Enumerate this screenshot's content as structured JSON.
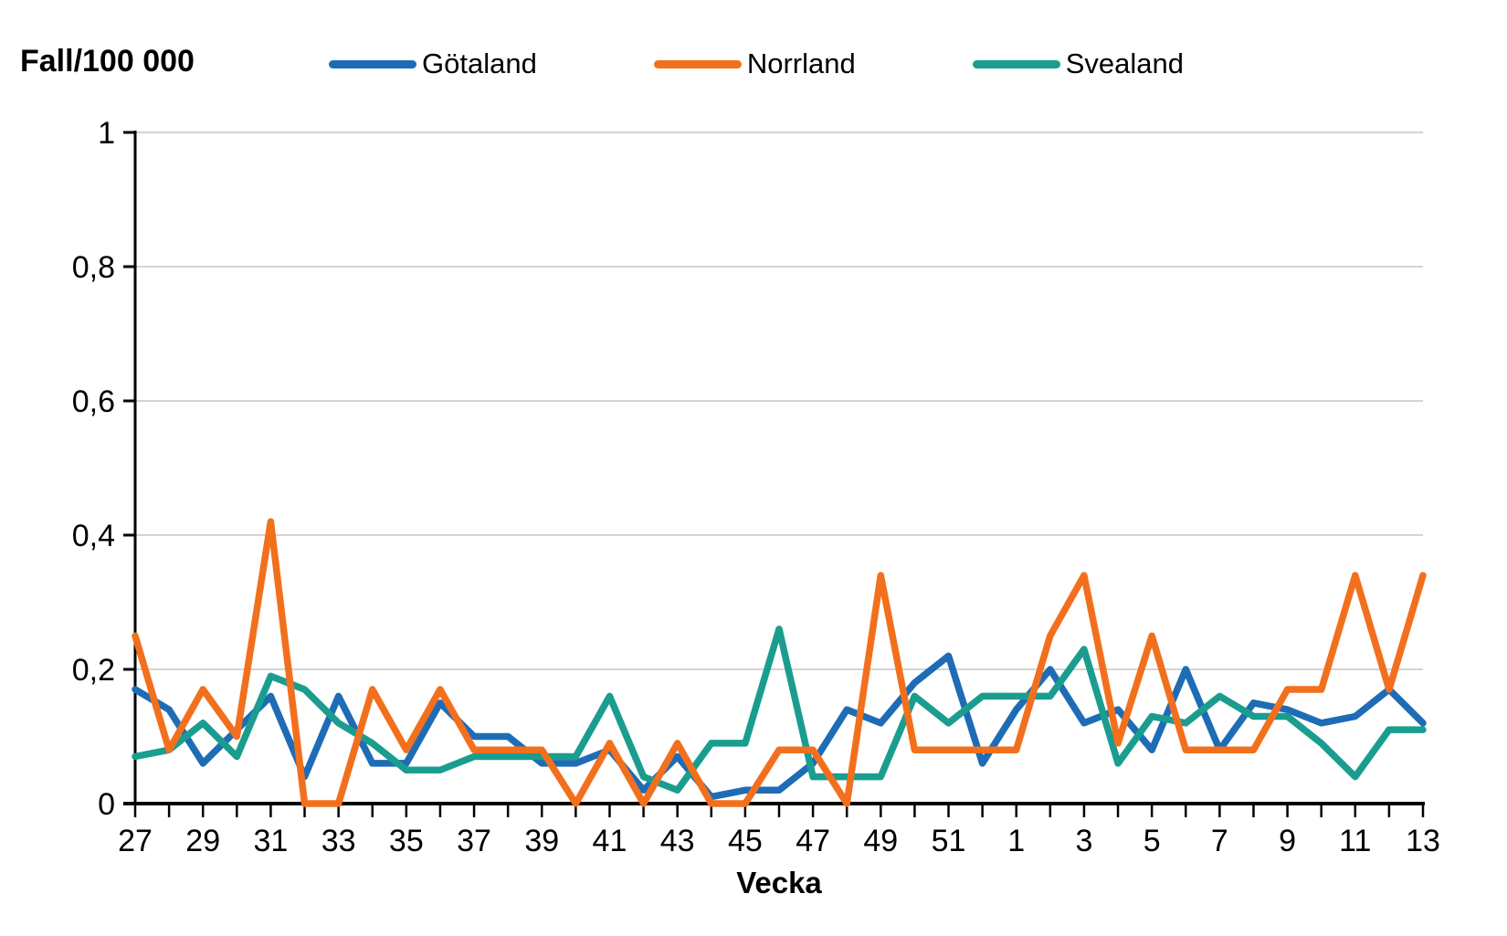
{
  "header": {
    "title": "Fall/100 000"
  },
  "legend": {
    "items": [
      {
        "label": "Götaland",
        "color": "#1E6CB5"
      },
      {
        "label": "Norrland",
        "color": "#F2701D"
      },
      {
        "label": "Svealand",
        "color": "#1A9D8F"
      }
    ]
  },
  "style": {
    "grid_color": "#C6C6C6",
    "axis_color": "#000000",
    "background": "#FFFFFF"
  },
  "chart_data": {
    "type": "line",
    "title": "Fall/100 000",
    "xlabel": "Vecka",
    "ylabel": "Fall/100 000",
    "ylim": [
      0,
      1
    ],
    "yticks": [
      0,
      0.2,
      0.4,
      0.6,
      0.8,
      1
    ],
    "ytick_labels": [
      "0",
      "0,2",
      "0,4",
      "0,6",
      "0,8",
      "1"
    ],
    "xtick_label_every": 2,
    "grid": true,
    "legend_position": "top",
    "categories": [
      27,
      28,
      29,
      30,
      31,
      32,
      33,
      34,
      35,
      36,
      37,
      38,
      39,
      40,
      41,
      42,
      43,
      44,
      45,
      46,
      47,
      48,
      49,
      50,
      51,
      52,
      1,
      2,
      3,
      4,
      5,
      6,
      7,
      8,
      9,
      10,
      11,
      12,
      13
    ],
    "series": [
      {
        "name": "Götaland",
        "color": "#1E6CB5",
        "values": [
          0.17,
          0.14,
          0.06,
          0.11,
          0.16,
          0.04,
          0.16,
          0.06,
          0.06,
          0.15,
          0.1,
          0.1,
          0.06,
          0.06,
          0.08,
          0.02,
          0.07,
          0.01,
          0.02,
          0.02,
          0.06,
          0.14,
          0.12,
          0.18,
          0.22,
          0.06,
          0.14,
          0.2,
          0.12,
          0.14,
          0.08,
          0.2,
          0.08,
          0.15,
          0.14,
          0.12,
          0.13,
          0.17,
          0.12
        ]
      },
      {
        "name": "Norrland",
        "color": "#F2701D",
        "values": [
          0.25,
          0.08,
          0.17,
          0.1,
          0.42,
          0,
          0,
          0.17,
          0.08,
          0.17,
          0.08,
          0.08,
          0.08,
          0,
          0.09,
          0,
          0.09,
          0,
          0,
          0.08,
          0.08,
          0,
          0.34,
          0.08,
          0.08,
          0.08,
          0.08,
          0.25,
          0.34,
          0.09,
          0.25,
          0.08,
          0.08,
          0.08,
          0.17,
          0.17,
          0.34,
          0.17,
          0.34
        ]
      },
      {
        "name": "Svealand",
        "color": "#1A9D8F",
        "values": [
          0.07,
          0.08,
          0.12,
          0.07,
          0.19,
          0.17,
          0.12,
          0.09,
          0.05,
          0.05,
          0.07,
          0.07,
          0.07,
          0.07,
          0.16,
          0.04,
          0.02,
          0.09,
          0.09,
          0.26,
          0.04,
          0.04,
          0.04,
          0.16,
          0.12,
          0.16,
          0.16,
          0.16,
          0.23,
          0.06,
          0.13,
          0.12,
          0.16,
          0.13,
          0.13,
          0.09,
          0.04,
          0.11,
          0.11
        ]
      }
    ]
  }
}
